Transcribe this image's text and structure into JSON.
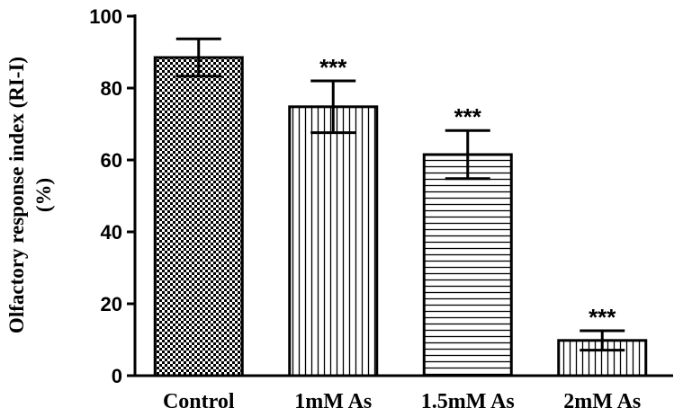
{
  "chart_data": {
    "type": "bar",
    "categories": [
      "Control",
      "1mM As",
      "1.5mM As",
      "2mM As"
    ],
    "values": [
      88.5,
      74.8,
      61.5,
      9.8
    ],
    "errors": [
      5.2,
      7.2,
      6.7,
      2.7
    ],
    "significance": [
      "",
      "***",
      "***",
      "***"
    ],
    "patterns": [
      "checker",
      "vertical",
      "horizontal",
      "vertical"
    ],
    "ylabel_line1": "Olfactory response index (RI-I)",
    "ylabel_line2": "(%)",
    "ylim": [
      0,
      100
    ],
    "yticks": [
      0,
      20,
      40,
      60,
      80,
      100
    ],
    "ytick_labels": [
      "0",
      "20",
      "40",
      "60",
      "80",
      "100"
    ],
    "grid": false,
    "colors": {
      "bar_stroke": "#000000",
      "bar_fill": "#ffffff"
    }
  }
}
